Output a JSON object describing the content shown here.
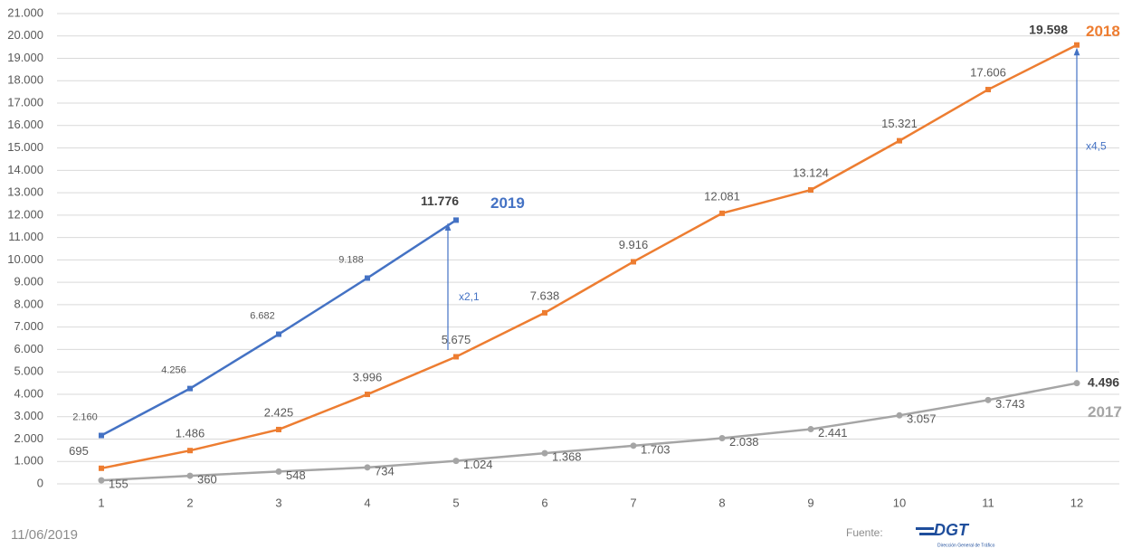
{
  "chart_data": {
    "type": "line",
    "categories": [
      "1",
      "2",
      "3",
      "4",
      "5",
      "6",
      "7",
      "8",
      "9",
      "10",
      "11",
      "12"
    ],
    "series": [
      {
        "name": "2019",
        "color": "#4472c4",
        "values": [
          2160,
          4256,
          6682,
          9188,
          11776,
          null,
          null,
          null,
          null,
          null,
          null,
          null
        ],
        "value_labels": [
          "2.160",
          "4.256",
          "6.682",
          "9.188",
          "11.776",
          null,
          null,
          null,
          null,
          null,
          null,
          null
        ]
      },
      {
        "name": "2018",
        "color": "#ed7d31",
        "values": [
          695,
          1486,
          2425,
          3996,
          5675,
          7638,
          9916,
          12081,
          13124,
          15321,
          17606,
          19598
        ],
        "value_labels": [
          "695",
          "1.486",
          "2.425",
          "3.996",
          "5.675",
          "7.638",
          "9.916",
          "12.081",
          "13.124",
          "15.321",
          "17.606",
          "19.598"
        ]
      },
      {
        "name": "2017",
        "color": "#a5a5a5",
        "values": [
          155,
          360,
          548,
          734,
          1024,
          1368,
          1703,
          2038,
          2441,
          3057,
          3743,
          4496
        ],
        "value_labels": [
          "155",
          "360",
          "548",
          "734",
          "1.024",
          "1.368",
          "1.703",
          "2.038",
          "2.441",
          "3.057",
          "3.743",
          "4.496"
        ]
      }
    ],
    "ylim": [
      0,
      21000
    ],
    "yticks": [
      0,
      {
        "value": 1000,
        "label": "1.000"
      },
      {
        "value": 2000,
        "label": "2.000"
      },
      {
        "value": 3000,
        "label": "3.000"
      },
      {
        "value": 4000,
        "label": "4.000"
      },
      {
        "value": 5000,
        "label": "5.000"
      },
      {
        "value": 6000,
        "label": "6.000"
      },
      {
        "value": 7000,
        "label": "7.000"
      },
      {
        "value": 8000,
        "label": "8.000"
      },
      {
        "value": 9000,
        "label": "9.000"
      },
      {
        "value": 10000,
        "label": "10.000"
      },
      {
        "value": 11000,
        "label": "11.000"
      },
      {
        "value": 12000,
        "label": "12.000"
      },
      {
        "value": 13000,
        "label": "13.000"
      },
      {
        "value": 14000,
        "label": "14.000"
      },
      {
        "value": 15000,
        "label": "15.000"
      },
      {
        "value": 16000,
        "label": "16.000"
      },
      {
        "value": 17000,
        "label": "17.000"
      },
      {
        "value": 18000,
        "label": "18.000"
      },
      {
        "value": 19000,
        "label": "19.000"
      },
      {
        "value": 20000,
        "label": "20.000"
      },
      {
        "value": 21000,
        "label": "21.000"
      }
    ],
    "grid": true,
    "annotations": [
      {
        "text": "x2,1",
        "color": "#4472c4"
      },
      {
        "text": "x4,5",
        "color": "#4472c4"
      }
    ]
  },
  "footer": {
    "date": "11/06/2019",
    "source_label": "Fuente:",
    "logo": "DGT",
    "logo_subtitle": "Dirección General de Tráfico"
  }
}
